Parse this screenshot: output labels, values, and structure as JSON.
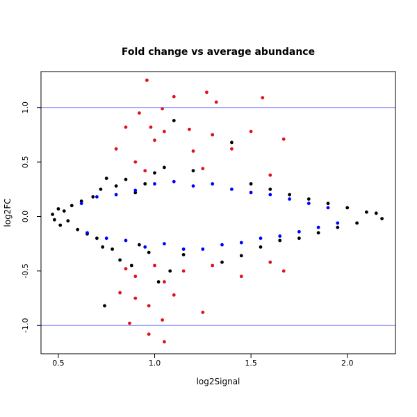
{
  "chart_data": {
    "type": "scatter",
    "title": "Fold change vs average abundance",
    "xlabel": "log2Signal",
    "ylabel": "log2FC",
    "xlim": [
      0.41,
      2.25
    ],
    "ylim": [
      -1.26,
      1.33
    ],
    "x_ticks": [
      "0.5",
      "1.0",
      "1.5",
      "2.0"
    ],
    "y_ticks": [
      "-1.0",
      "-0.5",
      "0.0",
      "0.5",
      "1.0"
    ],
    "grid": false,
    "legend": "none",
    "reference_lines": [
      {
        "y": 1.0,
        "color": "#7f7fff"
      },
      {
        "y": -1.0,
        "color": "#7f7fff"
      }
    ],
    "series_colors": {
      "black": "#000000",
      "blue": "#0000ff",
      "red": "#e0101e"
    },
    "series": [
      {
        "color": "black",
        "points": [
          [
            0.47,
            0.02
          ],
          [
            0.48,
            -0.03
          ],
          [
            0.5,
            0.07
          ],
          [
            0.51,
            -0.08
          ],
          [
            0.53,
            0.05
          ],
          [
            0.55,
            -0.04
          ],
          [
            0.57,
            0.1
          ],
          [
            0.6,
            -0.12
          ],
          [
            0.62,
            0.14
          ],
          [
            0.65,
            -0.16
          ],
          [
            0.68,
            0.18
          ],
          [
            0.7,
            -0.2
          ],
          [
            0.72,
            0.25
          ],
          [
            0.73,
            -0.28
          ],
          [
            0.75,
            0.35
          ],
          [
            0.74,
            -0.82
          ],
          [
            0.78,
            -0.3
          ],
          [
            0.8,
            0.28
          ],
          [
            0.82,
            -0.4
          ],
          [
            0.85,
            0.34
          ],
          [
            0.88,
            -0.45
          ],
          [
            0.9,
            0.22
          ],
          [
            0.92,
            -0.26
          ],
          [
            0.95,
            0.3
          ],
          [
            0.97,
            -0.33
          ],
          [
            1.0,
            0.4
          ],
          [
            1.02,
            -0.6
          ],
          [
            1.05,
            0.45
          ],
          [
            1.08,
            -0.5
          ],
          [
            1.1,
            0.88
          ],
          [
            1.15,
            -0.35
          ],
          [
            1.2,
            0.42
          ],
          [
            1.3,
            0.75
          ],
          [
            1.35,
            -0.42
          ],
          [
            1.4,
            0.68
          ],
          [
            1.45,
            -0.36
          ],
          [
            1.5,
            0.3
          ],
          [
            1.55,
            -0.28
          ],
          [
            1.6,
            0.25
          ],
          [
            1.65,
            -0.22
          ],
          [
            1.7,
            0.2
          ],
          [
            1.75,
            -0.2
          ],
          [
            1.8,
            0.16
          ],
          [
            1.85,
            -0.15
          ],
          [
            1.9,
            0.12
          ],
          [
            1.95,
            -0.1
          ],
          [
            2.0,
            0.08
          ],
          [
            2.05,
            -0.06
          ],
          [
            2.1,
            0.04
          ],
          [
            2.15,
            0.03
          ],
          [
            2.18,
            -0.02
          ]
        ]
      },
      {
        "color": "blue",
        "points": [
          [
            0.62,
            0.12
          ],
          [
            0.65,
            -0.15
          ],
          [
            0.7,
            0.18
          ],
          [
            0.75,
            -0.2
          ],
          [
            0.8,
            0.2
          ],
          [
            0.85,
            -0.22
          ],
          [
            0.9,
            0.24
          ],
          [
            0.95,
            -0.28
          ],
          [
            1.0,
            0.3
          ],
          [
            1.05,
            -0.25
          ],
          [
            1.1,
            0.32
          ],
          [
            1.15,
            -0.3
          ],
          [
            1.2,
            0.28
          ],
          [
            1.25,
            -0.3
          ],
          [
            1.3,
            0.3
          ],
          [
            1.35,
            -0.26
          ],
          [
            1.4,
            0.25
          ],
          [
            1.45,
            -0.24
          ],
          [
            1.5,
            0.22
          ],
          [
            1.55,
            -0.2
          ],
          [
            1.6,
            0.2
          ],
          [
            1.65,
            -0.18
          ],
          [
            1.7,
            0.16
          ],
          [
            1.75,
            -0.14
          ],
          [
            1.8,
            0.12
          ],
          [
            1.85,
            -0.1
          ],
          [
            1.9,
            0.08
          ],
          [
            1.95,
            -0.06
          ]
        ]
      },
      {
        "color": "red",
        "points": [
          [
            0.96,
            1.25
          ],
          [
            1.04,
            0.99
          ],
          [
            1.1,
            1.1
          ],
          [
            1.27,
            1.14
          ],
          [
            1.32,
            1.05
          ],
          [
            1.56,
            1.09
          ],
          [
            0.85,
            0.82
          ],
          [
            0.92,
            0.95
          ],
          [
            0.98,
            0.82
          ],
          [
            1.05,
            0.78
          ],
          [
            1.0,
            0.7
          ],
          [
            1.18,
            0.8
          ],
          [
            1.3,
            0.75
          ],
          [
            1.5,
            0.78
          ],
          [
            1.67,
            0.71
          ],
          [
            0.8,
            0.62
          ],
          [
            0.9,
            0.5
          ],
          [
            1.2,
            0.6
          ],
          [
            1.4,
            0.62
          ],
          [
            0.95,
            0.42
          ],
          [
            1.25,
            0.44
          ],
          [
            1.6,
            0.38
          ],
          [
            0.85,
            -0.48
          ],
          [
            0.9,
            -0.55
          ],
          [
            1.0,
            -0.45
          ],
          [
            1.05,
            -0.6
          ],
          [
            1.15,
            -0.5
          ],
          [
            1.3,
            -0.45
          ],
          [
            1.45,
            -0.55
          ],
          [
            1.6,
            -0.42
          ],
          [
            1.67,
            -0.5
          ],
          [
            0.82,
            -0.7
          ],
          [
            0.9,
            -0.75
          ],
          [
            0.97,
            -0.82
          ],
          [
            1.1,
            -0.72
          ],
          [
            1.25,
            -0.88
          ],
          [
            0.87,
            -0.98
          ],
          [
            0.97,
            -1.08
          ],
          [
            1.04,
            -0.95
          ],
          [
            1.05,
            -1.15
          ]
        ]
      }
    ]
  }
}
